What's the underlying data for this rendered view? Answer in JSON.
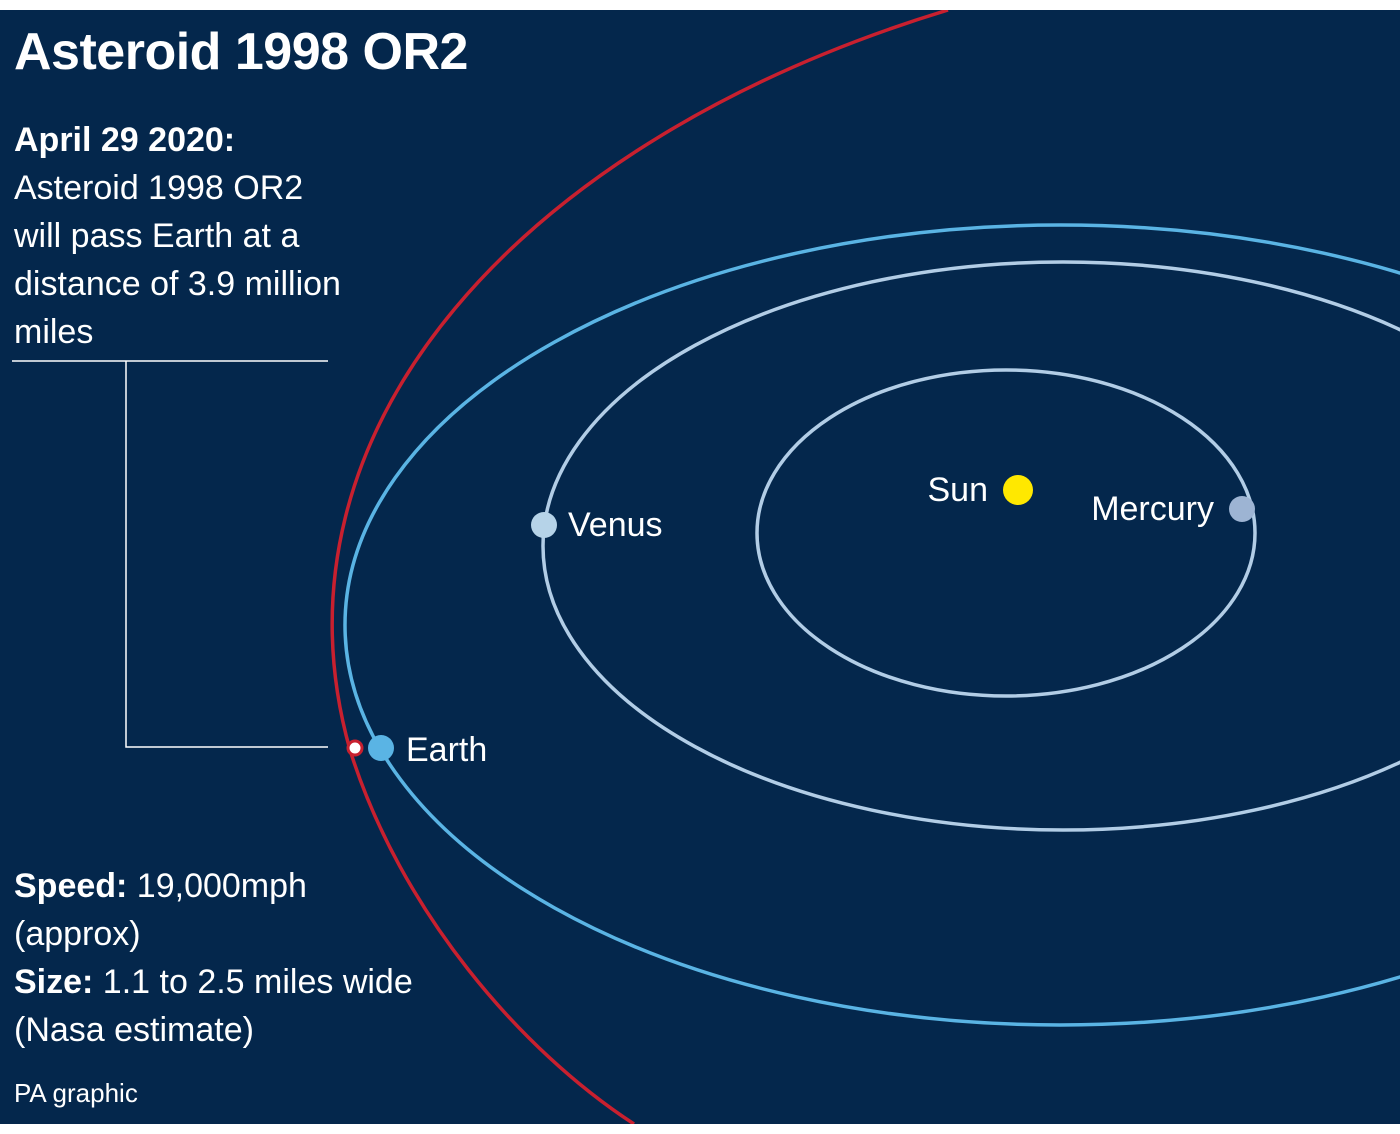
{
  "title": "Asteroid 1998 OR2",
  "intro": {
    "date": "April 29 2020:",
    "description": "Asteroid 1998 OR2 will pass Earth at a distance of 3.9 million miles"
  },
  "bodies": {
    "sun": "Sun",
    "mercury": "Mercury",
    "venus": "Venus",
    "earth": "Earth"
  },
  "facts": {
    "speed_label": "Speed:",
    "speed_value": " 19,000mph",
    "speed_note": "(approx)",
    "size_label": "Size:",
    "size_value": " 1.1 to 2.5 miles wide",
    "size_note": "(Nasa estimate)"
  },
  "credit": "PA graphic",
  "colors": {
    "background": "#04274c",
    "asteroid_orbit": "#c8202f",
    "earth_orbit": "#5ab4e4",
    "inner_orbits": "#b2cde6",
    "sun": "#ffe800",
    "mercury": "#9db4d3",
    "venus": "#b6d3e8",
    "earth": "#5ab4e4"
  }
}
